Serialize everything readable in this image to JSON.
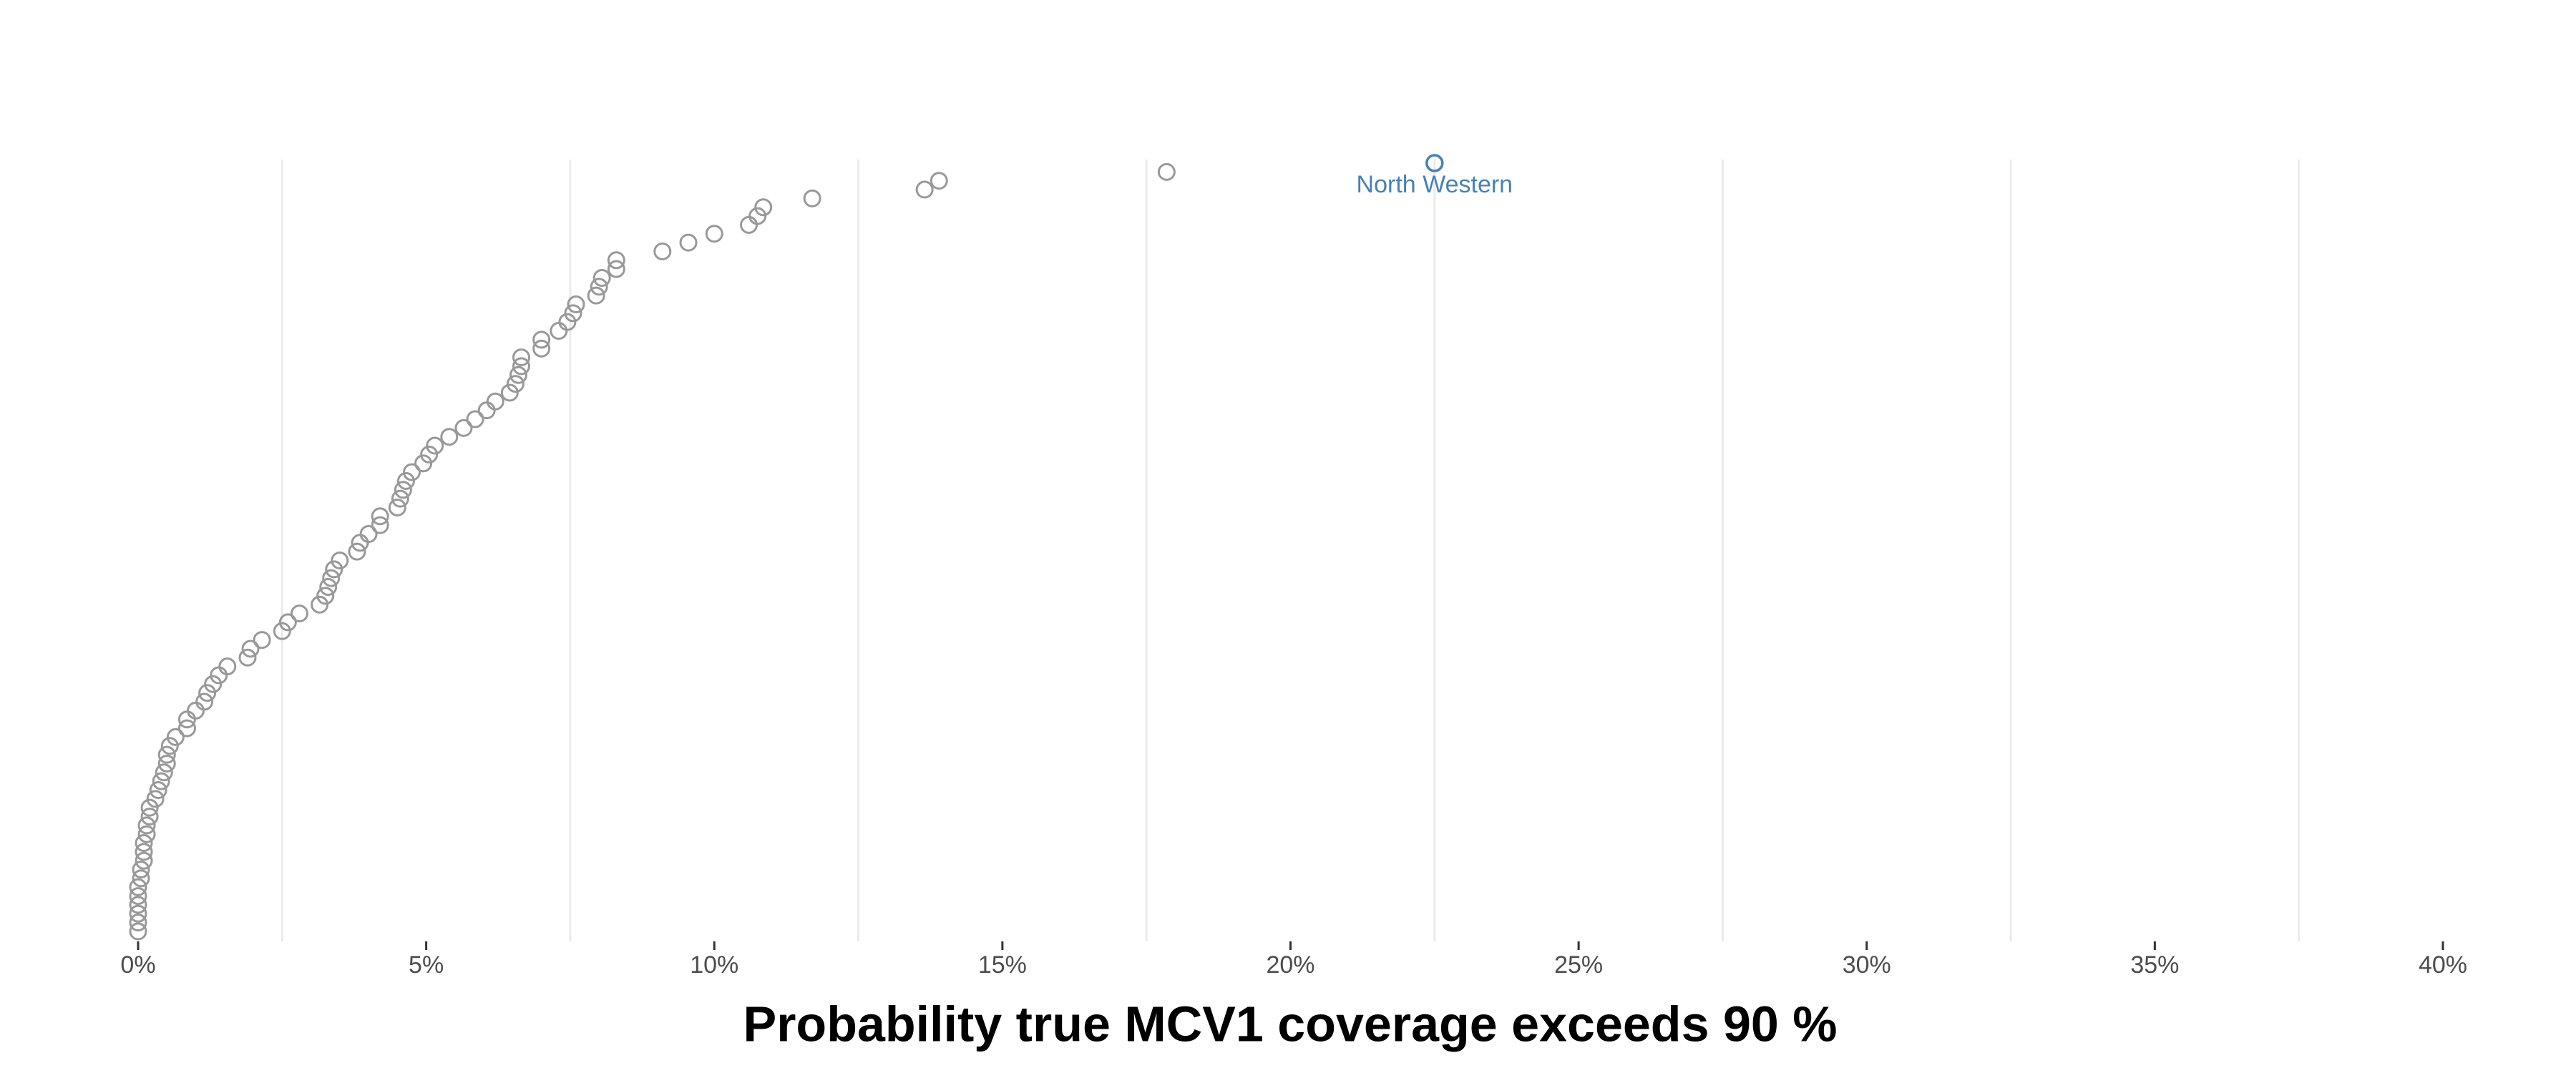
{
  "chart_data": {
    "type": "dot-rank",
    "x_label": "Probability true MCV1 coverage exceeds 90 %",
    "values": [
      0,
      0,
      0,
      0,
      0,
      0,
      0.05,
      0.05,
      0.1,
      0.1,
      0.1,
      0.15,
      0.15,
      0.2,
      0.2,
      0.3,
      0.35,
      0.4,
      0.45,
      0.5,
      0.5,
      0.55,
      0.65,
      0.85,
      0.85,
      1.0,
      1.15,
      1.2,
      1.3,
      1.4,
      1.55,
      1.9,
      1.95,
      2.15,
      2.5,
      2.6,
      2.8,
      3.15,
      3.25,
      3.3,
      3.35,
      3.4,
      3.5,
      3.8,
      3.85,
      4.0,
      4.2,
      4.2,
      4.5,
      4.55,
      4.6,
      4.65,
      4.75,
      4.95,
      5.05,
      5.15,
      5.4,
      5.65,
      5.85,
      6.05,
      6.2,
      6.45,
      6.55,
      6.6,
      6.65,
      6.65,
      7.0,
      7.0,
      7.3,
      7.45,
      7.55,
      7.6,
      7.95,
      8.0,
      8.05,
      8.3,
      8.3,
      9.1,
      9.55,
      10.0,
      10.6,
      10.75,
      10.85,
      11.7,
      13.65,
      13.9,
      17.85
    ],
    "color": "#999999",
    "highlight": {
      "name": "North Western",
      "value": 22.5,
      "color": "#4682b4"
    },
    "xlim": [
      0,
      40
    ],
    "xticks": [
      {
        "value": 0,
        "label": "0%"
      },
      {
        "value": 5,
        "label": "5%"
      },
      {
        "value": 10,
        "label": "10%"
      },
      {
        "value": 15,
        "label": "15%"
      },
      {
        "value": 20,
        "label": "20%"
      },
      {
        "value": 25,
        "label": "25%"
      },
      {
        "value": 30,
        "label": "30%"
      },
      {
        "value": 35,
        "label": "35%"
      },
      {
        "value": 40,
        "label": "40%"
      }
    ],
    "minor_grid": [
      2.5,
      7.5,
      12.5,
      17.5,
      22.5,
      27.5,
      32.5,
      37.5
    ]
  }
}
